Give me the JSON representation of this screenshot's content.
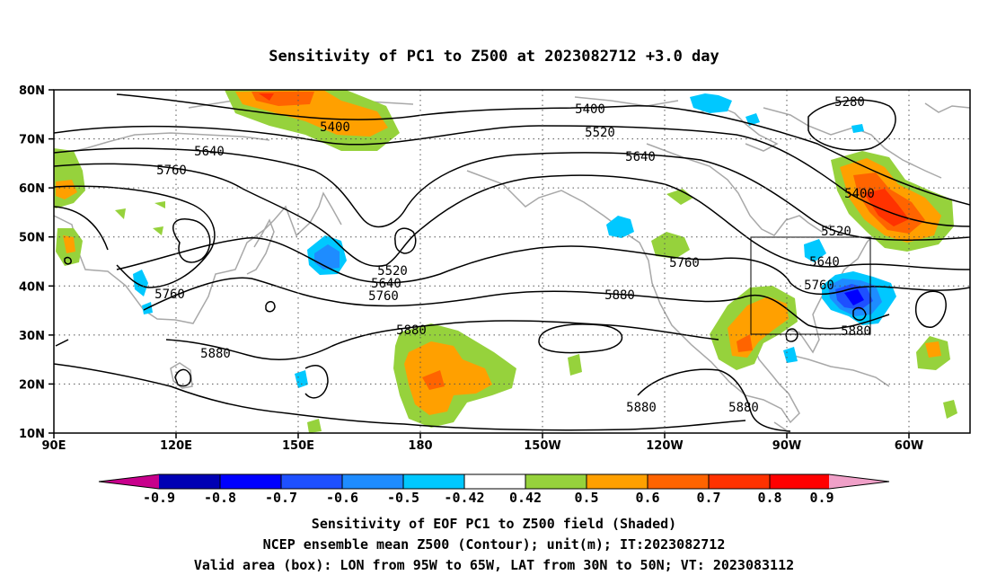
{
  "title": "Sensitivity of PC1 to Z500 at 2023082712 +3.0 day",
  "map": {
    "lat_ticks": [
      "80N",
      "70N",
      "60N",
      "50N",
      "40N",
      "30N",
      "20N",
      "10N"
    ],
    "lon_ticks": [
      "90E",
      "120E",
      "150E",
      "180",
      "150W",
      "120W",
      "90W",
      "60W"
    ],
    "contour_labels": [
      "5280",
      "5400",
      "5400",
      "5400",
      "5520",
      "5520",
      "5520",
      "5640",
      "5640",
      "5640",
      "5640",
      "5760",
      "5760",
      "5760",
      "5760",
      "5760",
      "5880",
      "5880",
      "5880",
      "5880",
      "5880",
      "5880"
    ],
    "valid_box": {
      "lon_from": "95W",
      "lon_to": "65W",
      "lat_from": "30N",
      "lat_to": "50N"
    }
  },
  "colorbar": {
    "labels": [
      "-0.9",
      "-0.8",
      "-0.7",
      "-0.6",
      "-0.5",
      "-0.42",
      "0.42",
      "0.5",
      "0.6",
      "0.7",
      "0.8",
      "0.9"
    ],
    "colors": [
      "#c8008c",
      "#0000b4",
      "#0000ff",
      "#1e50ff",
      "#1e8cff",
      "#00c8ff",
      "#ffffff",
      "#96d23c",
      "#ffa000",
      "#ff6400",
      "#ff3200",
      "#ff0000",
      "#f0a0c8"
    ]
  },
  "caption": {
    "line1": "Sensitivity of EOF PC1 to Z500 field (Shaded)",
    "line2": "NCEP ensemble mean Z500 (Contour); unit(m); IT:2023082712",
    "line3": "Valid area (box): LON from 95W to 65W, LAT from 30N to 50N; VT: 2023083112"
  }
}
